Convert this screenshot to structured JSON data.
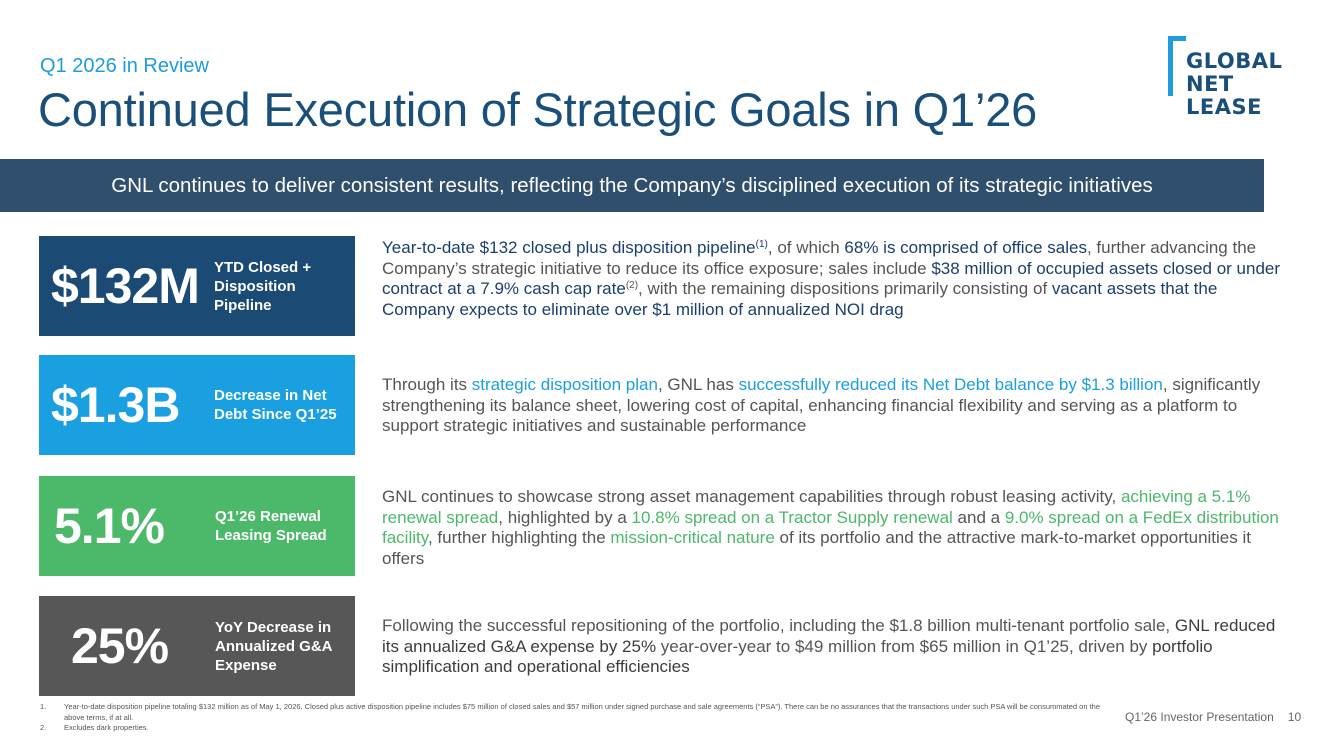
{
  "header": {
    "eyebrow": "Q1 2026 in Review",
    "title": "Continued Execution of Strategic Goals in Q1’26"
  },
  "logo": {
    "lines": [
      "GLOBAL",
      "NET",
      "LEASE"
    ]
  },
  "banner": {
    "text": "GNL continues to deliver consistent results, reflecting the Company’s disciplined execution of its strategic initiatives"
  },
  "colors": {
    "navy_box": "#1b4a75",
    "blue_box": "#1a9fe0",
    "green_box": "#4cb86a",
    "gray_box": "#575757",
    "banner": "#2f4f6c"
  },
  "highlights": [
    {
      "value": "$132M",
      "label": "YTD Closed + Disposition Pipeline",
      "desc": [
        {
          "t": "Year-to-date $132 closed plus disposition pipeline",
          "s": "b navy"
        },
        {
          "t": "(1)",
          "s": "sup b navy"
        },
        {
          "t": ", of which ",
          "s": ""
        },
        {
          "t": "68% is comprised of office sales",
          "s": "b navy"
        },
        {
          "t": ", further advancing the Company’s strategic initiative to reduce its office exposure; sales include ",
          "s": ""
        },
        {
          "t": "$38 million of occupied assets closed or under contract at a 7.9% cash cap rate",
          "s": "b navy"
        },
        {
          "t": "(2)",
          "s": "sup"
        },
        {
          "t": ", with the remaining dispositions primarily consisting of ",
          "s": ""
        },
        {
          "t": "vacant assets that the Company expects to eliminate over $1 million of annualized NOI drag",
          "s": "b navy"
        }
      ]
    },
    {
      "value": "$1.3B",
      "label": "Decrease in Net Debt Since Q1’25",
      "desc": [
        {
          "t": "Through its ",
          "s": ""
        },
        {
          "t": "strategic disposition plan",
          "s": "b blue"
        },
        {
          "t": ", GNL has ",
          "s": ""
        },
        {
          "t": "successfully reduced its Net Debt balance by $1.3 billion",
          "s": "b blue"
        },
        {
          "t": ", significantly strengthening its balance sheet, lowering cost of capital, enhancing financial flexibility and serving as a platform to support strategic initiatives and sustainable performance",
          "s": ""
        }
      ]
    },
    {
      "value": "5.1%",
      "label": "Q1’26 Renewal Leasing Spread",
      "desc": [
        {
          "t": "GNL continues to showcase strong asset management capabilities through robust leasing activity, ",
          "s": ""
        },
        {
          "t": "achieving a 5.1% renewal spread",
          "s": "b green"
        },
        {
          "t": ", highlighted by a ",
          "s": ""
        },
        {
          "t": "10.8% spread on a Tractor Supply renewal",
          "s": "b green"
        },
        {
          "t": " and a ",
          "s": ""
        },
        {
          "t": "9.0% spread on a FedEx distribution facility",
          "s": "b green"
        },
        {
          "t": ", further highlighting the ",
          "s": ""
        },
        {
          "t": "mission-critical nature",
          "s": "b green"
        },
        {
          "t": " of its portfolio and the attractive mark-to-market opportunities it offers",
          "s": ""
        }
      ]
    },
    {
      "value": "25%",
      "label": "YoY Decrease in Annualized G&A Expense",
      "desc": [
        {
          "t": "Following the successful repositioning of the portfolio, including the $1.8 billion multi-tenant portfolio sale, ",
          "s": ""
        },
        {
          "t": "GNL reduced its annualized G&A expense by 25%",
          "s": "b dark"
        },
        {
          "t": " year-over-year to $49 million from $65 million in Q1’25, driven by ",
          "s": ""
        },
        {
          "t": "portfolio simplification and operational efficiencies",
          "s": "b dark"
        }
      ]
    }
  ],
  "footnotes": [
    {
      "num": "1.",
      "text": "Year-to-date disposition pipeline totaling $132 million as of May 1, 2026. Closed plus active disposition pipeline includes $75 million of closed sales and $57 million under signed purchase and sale agreements (“PSA”). There can be no assurances that the transactions under such PSA will be consummated on the above terms, if at all."
    },
    {
      "num": "2.",
      "text": "Excludes dark properties."
    }
  ],
  "footer": {
    "label": "Q1’26 Investor Presentation",
    "page": "10"
  }
}
